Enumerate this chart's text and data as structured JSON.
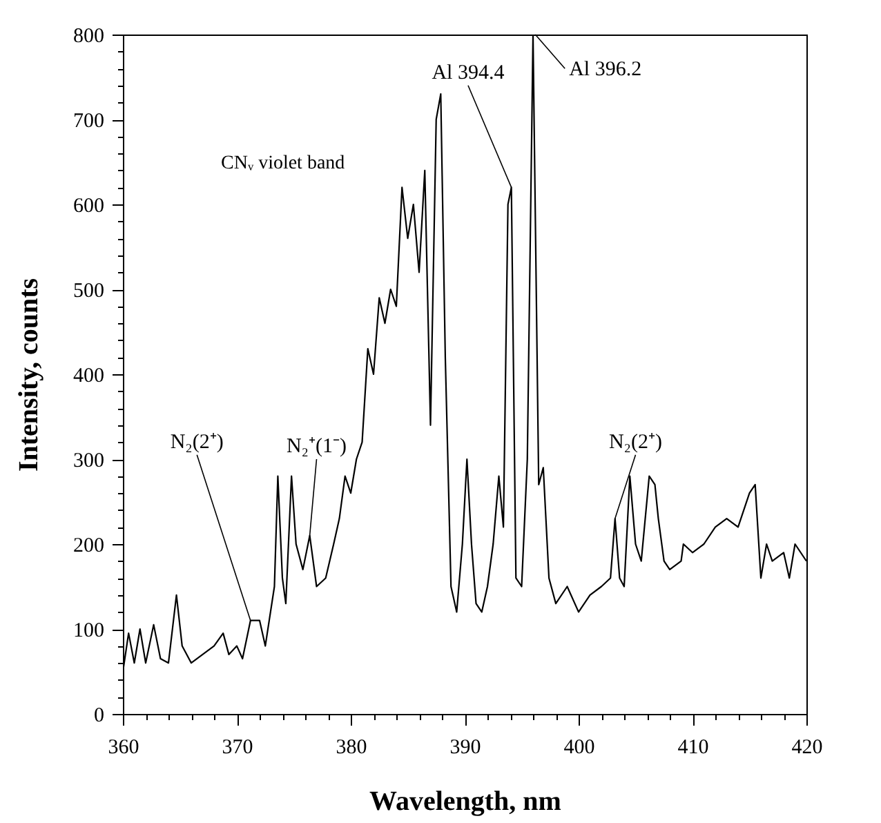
{
  "chart_data": {
    "type": "line",
    "xlabel": "Wavelength, nm",
    "ylabel": "Intensity, counts",
    "xlim": [
      360,
      420
    ],
    "ylim": [
      0,
      800
    ],
    "xticks": [
      360,
      {
        "value": 362,
        "label": null
      },
      {
        "value": 364,
        "label": null
      },
      {
        "value": 366,
        "label": null
      },
      {
        "value": 368,
        "label": null
      },
      370,
      {
        "value": 372,
        "label": null
      },
      {
        "value": 374,
        "label": null
      },
      {
        "value": 376,
        "label": null
      },
      {
        "value": 378,
        "label": null
      },
      380,
      {
        "value": 382,
        "label": null
      },
      {
        "value": 384,
        "label": null
      },
      {
        "value": 386,
        "label": null
      },
      {
        "value": 388,
        "label": null
      },
      390,
      {
        "value": 392,
        "label": null
      },
      {
        "value": 394,
        "label": null
      },
      {
        "value": 396,
        "label": null
      },
      {
        "value": 398,
        "label": null
      },
      400,
      {
        "value": 402,
        "label": null
      },
      {
        "value": 404,
        "label": null
      },
      {
        "value": 406,
        "label": null
      },
      {
        "value": 408,
        "label": null
      },
      410,
      {
        "value": 412,
        "label": null
      },
      {
        "value": 414,
        "label": null
      },
      {
        "value": 416,
        "label": null
      },
      {
        "value": 418,
        "label": null
      },
      420
    ],
    "yticks": [
      0,
      {
        "value": 20,
        "label": null
      },
      {
        "value": 40,
        "label": null
      },
      {
        "value": 60,
        "label": null
      },
      {
        "value": 80,
        "label": null
      },
      100,
      {
        "value": 120,
        "label": null
      },
      {
        "value": 140,
        "label": null
      },
      {
        "value": 160,
        "label": null
      },
      {
        "value": 180,
        "label": null
      },
      200,
      {
        "value": 220,
        "label": null
      },
      {
        "value": 240,
        "label": null
      },
      {
        "value": 260,
        "label": null
      },
      {
        "value": 280,
        "label": null
      },
      300,
      {
        "value": 320,
        "label": null
      },
      {
        "value": 340,
        "label": null
      },
      {
        "value": 360,
        "label": null
      },
      {
        "value": 380,
        "label": null
      },
      400,
      {
        "value": 420,
        "label": null
      },
      {
        "value": 440,
        "label": null
      },
      {
        "value": 460,
        "label": null
      },
      {
        "value": 480,
        "label": null
      },
      500,
      {
        "value": 520,
        "label": null
      },
      {
        "value": 540,
        "label": null
      },
      {
        "value": 560,
        "label": null
      },
      {
        "value": 580,
        "label": null
      },
      600,
      {
        "value": 620,
        "label": null
      },
      {
        "value": 640,
        "label": null
      },
      {
        "value": 660,
        "label": null
      },
      {
        "value": 680,
        "label": null
      },
      700,
      {
        "value": 720,
        "label": null
      },
      {
        "value": 740,
        "label": null
      },
      {
        "value": 760,
        "label": null
      },
      {
        "value": 780,
        "label": null
      },
      800
    ],
    "grid": false,
    "legend": false,
    "marker": "none",
    "line_style": "solid",
    "x": [
      360,
      360.5,
      361,
      361.5,
      362,
      362.7,
      363.3,
      364,
      364.7,
      365.2,
      366,
      367,
      368,
      368.8,
      369.3,
      370,
      370.5,
      371.2,
      372,
      372.5,
      373.3,
      373.6,
      374,
      374.3,
      374.8,
      375.2,
      375.8,
      376.4,
      377,
      377.8,
      378.5,
      379,
      379.5,
      380,
      380.5,
      381,
      381.5,
      382,
      382.5,
      383,
      383.5,
      384,
      384.5,
      385,
      385.5,
      386,
      386.5,
      387,
      387.5,
      387.9,
      388.3,
      388.8,
      389.3,
      389.8,
      390.2,
      390.6,
      391,
      391.5,
      392,
      392.5,
      393,
      393.4,
      393.8,
      394.1,
      394.5,
      395,
      395.5,
      396,
      396.5,
      396.9,
      397.4,
      398,
      399,
      400,
      401,
      402,
      402.8,
      403.2,
      403.6,
      404,
      404.5,
      405,
      405.5,
      406.2,
      406.7,
      407,
      407.5,
      408,
      409,
      409.2,
      410,
      411,
      412,
      413,
      414,
      415,
      415.5,
      416,
      416.5,
      417,
      418,
      418.5,
      419,
      420
    ],
    "series": [
      {
        "color": "#000000",
        "values": [
          50,
          95,
          60,
          100,
          60,
          105,
          65,
          60,
          140,
          80,
          60,
          70,
          80,
          95,
          70,
          80,
          65,
          110,
          110,
          80,
          150,
          280,
          160,
          130,
          280,
          200,
          170,
          210,
          150,
          160,
          200,
          230,
          280,
          260,
          300,
          320,
          430,
          400,
          490,
          460,
          500,
          480,
          620,
          560,
          600,
          520,
          640,
          340,
          700,
          730,
          420,
          150,
          120,
          200,
          300,
          200,
          130,
          120,
          150,
          200,
          280,
          220,
          600,
          620,
          160,
          150,
          300,
          800,
          270,
          290,
          160,
          130,
          150,
          120,
          140,
          150,
          160,
          230,
          160,
          150,
          280,
          200,
          180,
          280,
          270,
          230,
          180,
          170,
          180,
          200,
          190,
          200,
          220,
          230,
          220,
          260,
          270,
          160,
          200,
          180,
          190,
          160,
          200,
          180
        ]
      }
    ],
    "annotations": [
      {
        "text": "N₂(2⁺)",
        "x": 371.2,
        "y": 110
      },
      {
        "text": "N₂⁺(1⁻)",
        "x": 376.4,
        "y": 210
      },
      "CNᵥ violet band",
      {
        "text": "Al 394.4",
        "x": 394.1,
        "y": 620
      },
      {
        "text": "Al 396.2",
        "x": 396.2,
        "y": 800
      },
      {
        "text": "N₂(2⁺)",
        "x": 403.2,
        "y": 230
      }
    ]
  }
}
